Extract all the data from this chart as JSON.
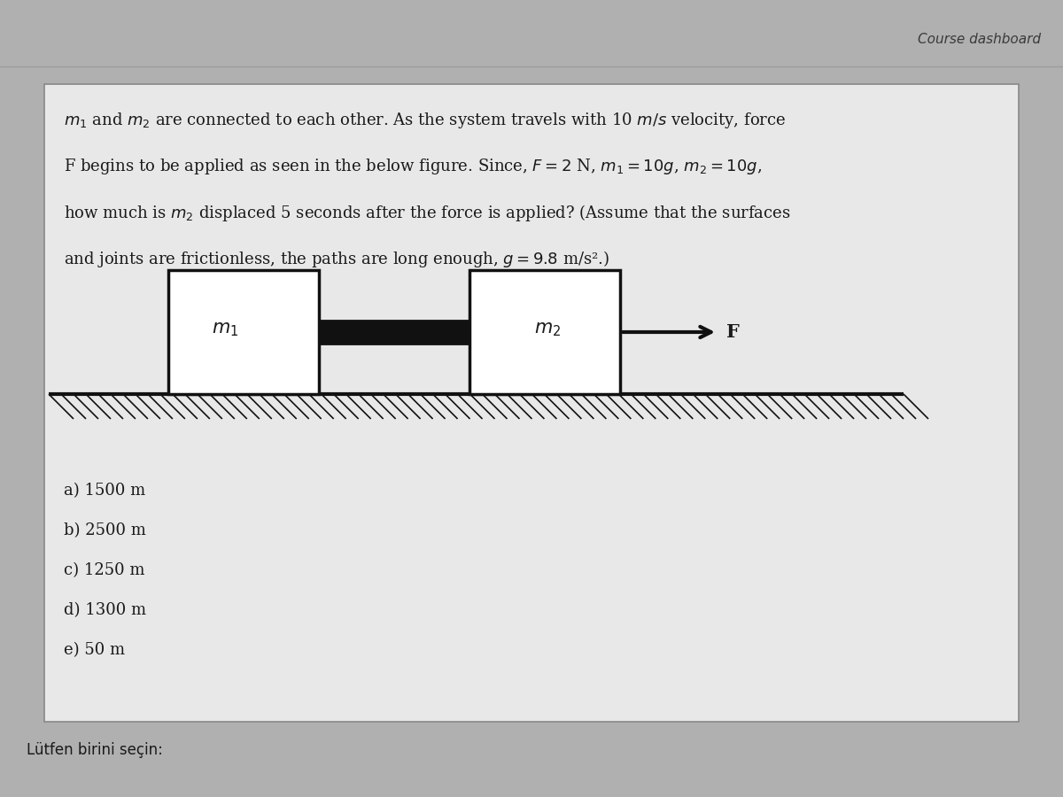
{
  "title": "Course dashboard",
  "background_outer": "#b0b0b0",
  "background_box": "#e8e8e8",
  "background_inner_box": "#e0e0e0",
  "problem_lines": [
    "$m_1$ and $m_2$ are connected to each other. As the system travels with 10 $m/s$ velocity, force",
    "F begins to be applied as seen in the below figure. Since, $F = 2$ N, $m_1 = 10g$, $m_2 = 10g$,",
    "how much is $m_2$ displaced 5 seconds after the force is applied? (Assume that the surfaces",
    "and joints are frictionless, the paths are long enough, $g = 9.8$ m/s².)"
  ],
  "options": [
    "a) 1500 m",
    "b) 2500 m",
    "c) 1250 m",
    "d) 1300 m",
    "e) 50 m"
  ],
  "footer_text": "Lütfen birini seçin:",
  "text_color": "#1a1a1a",
  "title_color": "#3a3a3a",
  "box_border_color": "#888888",
  "ground_color": "#111111",
  "block_fill": "#ffffff",
  "block_border": "#111111",
  "arrow_color": "#111111",
  "rod_color": "#111111"
}
